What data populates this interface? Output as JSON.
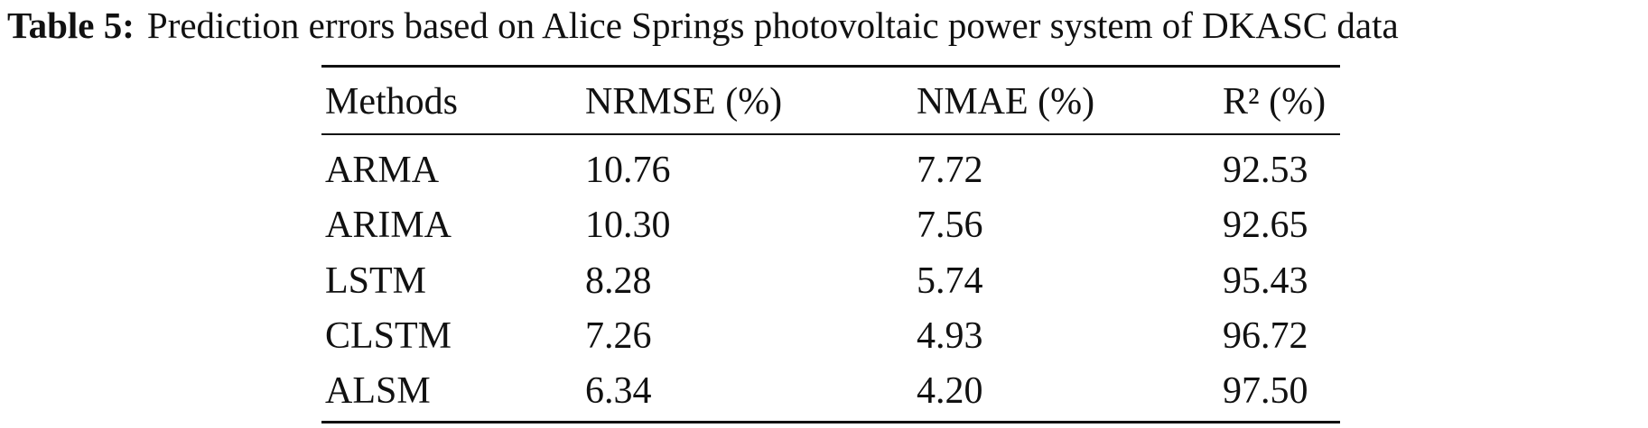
{
  "caption": {
    "label": "Table 5:",
    "text": "Prediction errors based on Alice Springs photovoltaic power system of DKASC data"
  },
  "table": {
    "header": [
      "Methods",
      "NRMSE (%)",
      "NMAE (%)",
      "R² (%)"
    ],
    "rows": [
      [
        "ARMA",
        "10.76",
        "7.72",
        "92.53"
      ],
      [
        "ARIMA",
        "10.30",
        "7.56",
        "92.65"
      ],
      [
        "LSTM",
        "8.28",
        "5.74",
        "95.43"
      ],
      [
        "CLSTM",
        "7.26",
        "4.93",
        "96.72"
      ],
      [
        "ALSM",
        "6.34",
        "4.20",
        "97.50"
      ]
    ]
  }
}
